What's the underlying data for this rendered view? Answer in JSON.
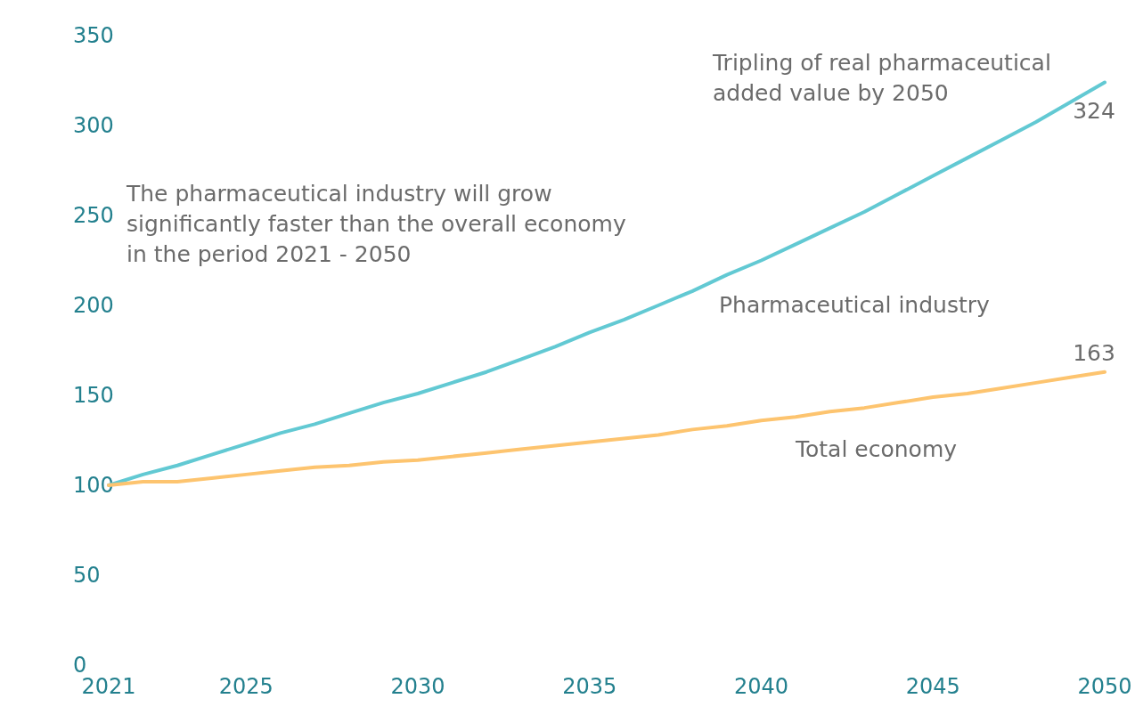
{
  "chart_data": {
    "type": "line",
    "x": [
      2021,
      2022,
      2023,
      2024,
      2025,
      2026,
      2027,
      2028,
      2029,
      2030,
      2031,
      2032,
      2033,
      2034,
      2035,
      2036,
      2037,
      2038,
      2039,
      2040,
      2041,
      2042,
      2043,
      2044,
      2045,
      2046,
      2047,
      2048,
      2049,
      2050
    ],
    "series": [
      {
        "name": "Pharmaceutical industry",
        "color": "#62c9d3",
        "values": [
          100,
          106,
          111,
          117,
          123,
          129,
          134,
          140,
          146,
          151,
          157,
          163,
          170,
          177,
          185,
          192,
          200,
          208,
          217,
          225,
          234,
          243,
          252,
          262,
          272,
          282,
          292,
          302,
          313,
          324
        ],
        "value_labels": [
          null,
          null,
          null,
          null,
          null,
          null,
          null,
          null,
          null,
          null,
          null,
          null,
          null,
          null,
          null,
          null,
          null,
          null,
          null,
          null,
          null,
          null,
          null,
          null,
          null,
          null,
          null,
          null,
          null,
          "324"
        ]
      },
      {
        "name": "Total economy",
        "color": "#fdc46f",
        "values": [
          100,
          102,
          102,
          104,
          106,
          108,
          110,
          111,
          113,
          114,
          116,
          118,
          120,
          122,
          124,
          126,
          128,
          131,
          133,
          136,
          138,
          141,
          143,
          146,
          149,
          151,
          154,
          157,
          160,
          163
        ],
        "value_labels": [
          null,
          null,
          null,
          null,
          null,
          null,
          null,
          null,
          null,
          null,
          null,
          null,
          null,
          null,
          null,
          null,
          null,
          null,
          null,
          null,
          null,
          null,
          null,
          null,
          null,
          null,
          null,
          null,
          null,
          "163"
        ]
      }
    ],
    "annotations": [
      "Tripling of real pharmaceutical\nadded value by 2050",
      "The pharmaceutical industry will grow\nsignificantly faster than the overall economy\nin the period 2021 - 2050"
    ],
    "xlim": [
      2021,
      2050
    ],
    "xticks": [
      2021,
      2025,
      2030,
      2035,
      2040,
      2045,
      2050
    ],
    "ylim": [
      0,
      350
    ],
    "yticks": [
      0,
      50,
      100,
      150,
      200,
      250,
      300,
      350
    ],
    "grid": false,
    "legend": false,
    "marker": "none",
    "line_style": "solid"
  }
}
